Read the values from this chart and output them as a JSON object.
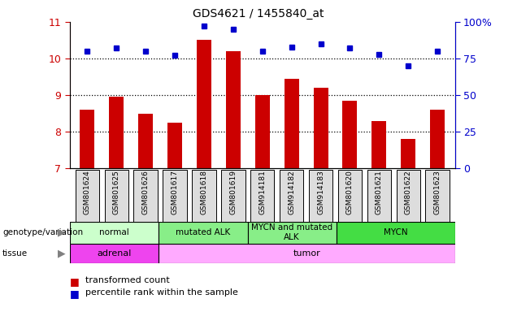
{
  "title": "GDS4621 / 1455840_at",
  "samples": [
    "GSM801624",
    "GSM801625",
    "GSM801626",
    "GSM801617",
    "GSM801618",
    "GSM801619",
    "GSM914181",
    "GSM914182",
    "GSM914183",
    "GSM801620",
    "GSM801621",
    "GSM801622",
    "GSM801623"
  ],
  "bar_values": [
    8.6,
    8.95,
    8.5,
    8.25,
    10.5,
    10.2,
    9.0,
    9.45,
    9.2,
    8.85,
    8.3,
    7.8,
    8.6
  ],
  "dot_values": [
    80,
    82,
    80,
    77,
    97,
    95,
    80,
    83,
    85,
    82,
    78,
    70,
    80
  ],
  "ylim_left": [
    7,
    11
  ],
  "ylim_right": [
    0,
    100
  ],
  "yticks_left": [
    7,
    8,
    9,
    10,
    11
  ],
  "yticks_right": [
    0,
    25,
    50,
    75,
    100
  ],
  "ytick_labels_right": [
    "0",
    "25",
    "50",
    "75",
    "100%"
  ],
  "bar_color": "#cc0000",
  "dot_color": "#0000cc",
  "bar_bottom": 7,
  "genotype_groups": [
    {
      "label": "normal",
      "start": 0,
      "end": 3,
      "color": "#ccffcc"
    },
    {
      "label": "mutated ALK",
      "start": 3,
      "end": 6,
      "color": "#88ee88"
    },
    {
      "label": "MYCN and mutated\nALK",
      "start": 6,
      "end": 9,
      "color": "#88ee88"
    },
    {
      "label": "MYCN",
      "start": 9,
      "end": 13,
      "color": "#44dd44"
    }
  ],
  "tissue_adrenal_color": "#ee44ee",
  "tissue_tumor_color": "#ffaaff",
  "tissue_groups": [
    {
      "label": "adrenal",
      "start": 0,
      "end": 3,
      "color": "#ee44ee"
    },
    {
      "label": "tumor",
      "start": 3,
      "end": 13,
      "color": "#ffaaff"
    }
  ],
  "legend_items": [
    {
      "label": "transformed count",
      "color": "#cc0000"
    },
    {
      "label": "percentile rank within the sample",
      "color": "#0000cc"
    }
  ],
  "title_fontsize": 10,
  "left_tick_color": "#cc0000",
  "right_tick_color": "#0000cc",
  "sample_label_bg": "#dddddd",
  "geno_label": "genotype/variation",
  "tissue_label": "tissue"
}
